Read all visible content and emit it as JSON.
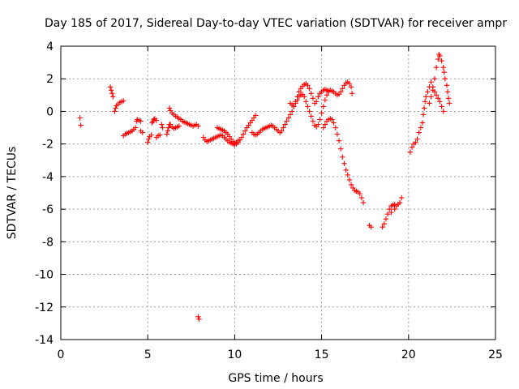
{
  "chart_data": {
    "type": "scatter",
    "title": "Day 185 of 2017, Sidereal Day-to-day VTEC variation (SDTVAR) for receiver ampr",
    "xlabel": "GPS time / hours",
    "ylabel": "SDTVAR / TECUs",
    "xlim": [
      0,
      25
    ],
    "ylim": [
      -14,
      4
    ],
    "xticks": [
      0,
      5,
      10,
      15,
      20,
      25
    ],
    "yticks": [
      -14,
      -12,
      -10,
      -8,
      -6,
      -4,
      -2,
      0,
      2,
      4
    ],
    "xtick_labels": [
      "0",
      "5",
      "10",
      "15",
      "20",
      "25"
    ],
    "ytick_labels": [
      "-14",
      "-12",
      "-10",
      "-8",
      "-6",
      "-4",
      "-2",
      "0",
      "2",
      "4"
    ],
    "grid": true,
    "marker": "plus",
    "color": "#ff0000",
    "series": [
      {
        "points": [
          [
            1.1,
            -0.4
          ],
          [
            1.15,
            -0.85
          ],
          [
            2.85,
            1.5
          ],
          [
            2.9,
            1.3
          ],
          [
            2.95,
            1.1
          ],
          [
            3.0,
            0.9
          ],
          [
            3.1,
            0.0
          ],
          [
            3.15,
            0.2
          ],
          [
            3.2,
            0.35
          ],
          [
            3.3,
            0.45
          ],
          [
            3.4,
            0.55
          ],
          [
            3.5,
            0.6
          ],
          [
            3.6,
            0.65
          ],
          [
            3.6,
            -1.5
          ],
          [
            3.7,
            -1.4
          ],
          [
            3.8,
            -1.35
          ],
          [
            3.9,
            -1.3
          ],
          [
            4.0,
            -1.25
          ],
          [
            4.1,
            -1.2
          ],
          [
            4.2,
            -1.1
          ],
          [
            4.3,
            -1.0
          ],
          [
            4.35,
            -0.6
          ],
          [
            4.4,
            -0.5
          ],
          [
            4.5,
            -0.55
          ],
          [
            4.6,
            -0.6
          ],
          [
            4.6,
            -1.2
          ],
          [
            4.7,
            -1.3
          ],
          [
            5.0,
            -1.9
          ],
          [
            5.05,
            -1.7
          ],
          [
            5.1,
            -1.55
          ],
          [
            5.2,
            -1.45
          ],
          [
            5.25,
            -0.7
          ],
          [
            5.3,
            -0.6
          ],
          [
            5.35,
            -0.5
          ],
          [
            5.4,
            -0.45
          ],
          [
            5.5,
            -0.55
          ],
          [
            5.5,
            -1.6
          ],
          [
            5.6,
            -1.5
          ],
          [
            5.7,
            -1.45
          ],
          [
            5.8,
            -0.8
          ],
          [
            5.85,
            -1.0
          ],
          [
            6.1,
            -1.4
          ],
          [
            6.15,
            -1.2
          ],
          [
            6.2,
            -1.0
          ],
          [
            6.25,
            -0.8
          ],
          [
            6.25,
            0.2
          ],
          [
            6.3,
            0.05
          ],
          [
            6.4,
            -0.1
          ],
          [
            6.5,
            -0.2
          ],
          [
            6.6,
            -0.3
          ],
          [
            6.7,
            -0.35
          ],
          [
            6.8,
            -0.45
          ],
          [
            6.9,
            -0.5
          ],
          [
            7.0,
            -0.6
          ],
          [
            7.1,
            -0.65
          ],
          [
            7.2,
            -0.7
          ],
          [
            7.3,
            -0.75
          ],
          [
            7.4,
            -0.8
          ],
          [
            7.5,
            -0.85
          ],
          [
            7.6,
            -0.9
          ],
          [
            7.7,
            -0.85
          ],
          [
            7.8,
            -0.8
          ],
          [
            7.9,
            -0.9
          ],
          [
            6.3,
            -0.8
          ],
          [
            6.4,
            -0.95
          ],
          [
            6.5,
            -1.05
          ],
          [
            6.6,
            -1.0
          ],
          [
            6.7,
            -0.95
          ],
          [
            6.8,
            -0.9
          ],
          [
            7.9,
            -12.6
          ],
          [
            7.95,
            -12.75
          ],
          [
            8.2,
            -1.6
          ],
          [
            8.3,
            -1.75
          ],
          [
            8.4,
            -1.85
          ],
          [
            8.5,
            -1.8
          ],
          [
            8.6,
            -1.75
          ],
          [
            8.7,
            -1.7
          ],
          [
            8.8,
            -1.65
          ],
          [
            8.9,
            -1.6
          ],
          [
            9.0,
            -1.55
          ],
          [
            9.1,
            -1.5
          ],
          [
            9.2,
            -1.45
          ],
          [
            9.3,
            -1.5
          ],
          [
            9.4,
            -1.6
          ],
          [
            9.5,
            -1.7
          ],
          [
            9.6,
            -1.8
          ],
          [
            9.7,
            -1.9
          ],
          [
            9.8,
            -1.95
          ],
          [
            9.9,
            -2.0
          ],
          [
            10.0,
            -2.05
          ],
          [
            10.1,
            -2.0
          ],
          [
            10.2,
            -1.9
          ],
          [
            10.3,
            -1.75
          ],
          [
            10.4,
            -1.6
          ],
          [
            10.5,
            -1.4
          ],
          [
            10.6,
            -1.2
          ],
          [
            10.7,
            -1.0
          ],
          [
            10.8,
            -0.85
          ],
          [
            10.9,
            -0.7
          ],
          [
            11.0,
            -0.55
          ],
          [
            11.1,
            -0.4
          ],
          [
            11.2,
            -0.25
          ],
          [
            9.0,
            -1.0
          ],
          [
            9.1,
            -1.05
          ],
          [
            9.2,
            -1.1
          ],
          [
            9.3,
            -1.15
          ],
          [
            9.4,
            -1.2
          ],
          [
            9.5,
            -1.3
          ],
          [
            9.6,
            -1.4
          ],
          [
            9.7,
            -1.55
          ],
          [
            9.8,
            -1.7
          ],
          [
            9.9,
            -1.85
          ],
          [
            10.0,
            -1.95
          ],
          [
            10.1,
            -1.9
          ],
          [
            10.2,
            -1.8
          ],
          [
            11.0,
            -1.3
          ],
          [
            11.1,
            -1.4
          ],
          [
            11.2,
            -1.45
          ],
          [
            11.3,
            -1.4
          ],
          [
            11.4,
            -1.3
          ],
          [
            11.5,
            -1.2
          ],
          [
            11.6,
            -1.1
          ],
          [
            11.7,
            -1.05
          ],
          [
            11.8,
            -1.0
          ],
          [
            11.9,
            -0.95
          ],
          [
            12.0,
            -0.9
          ],
          [
            12.1,
            -0.85
          ],
          [
            12.2,
            -0.9
          ],
          [
            12.3,
            -1.0
          ],
          [
            12.4,
            -1.1
          ],
          [
            12.5,
            -1.2
          ],
          [
            12.6,
            -1.3
          ],
          [
            12.7,
            -1.2
          ],
          [
            12.8,
            -1.0
          ],
          [
            12.9,
            -0.8
          ],
          [
            13.0,
            -0.6
          ],
          [
            13.1,
            -0.4
          ],
          [
            13.2,
            -0.2
          ],
          [
            13.3,
            0.0
          ],
          [
            13.4,
            0.3
          ],
          [
            13.5,
            0.6
          ],
          [
            13.6,
            0.9
          ],
          [
            13.7,
            1.2
          ],
          [
            13.8,
            1.4
          ],
          [
            13.9,
            1.55
          ],
          [
            14.0,
            1.65
          ],
          [
            14.1,
            1.7
          ],
          [
            14.2,
            1.6
          ],
          [
            14.3,
            1.4
          ],
          [
            14.4,
            1.1
          ],
          [
            14.5,
            0.8
          ],
          [
            14.6,
            0.5
          ],
          [
            13.2,
            0.5
          ],
          [
            13.3,
            0.4
          ],
          [
            13.4,
            0.3
          ],
          [
            13.5,
            0.5
          ],
          [
            13.6,
            0.7
          ],
          [
            13.7,
            0.9
          ],
          [
            13.8,
            1.0
          ],
          [
            13.9,
            1.05
          ],
          [
            14.0,
            0.9
          ],
          [
            14.1,
            0.6
          ],
          [
            14.2,
            0.3
          ],
          [
            14.3,
            0.0
          ],
          [
            14.4,
            -0.3
          ],
          [
            14.5,
            -0.6
          ],
          [
            14.6,
            -0.85
          ],
          [
            14.7,
            -0.95
          ],
          [
            14.8,
            -0.8
          ],
          [
            14.9,
            -0.5
          ],
          [
            15.0,
            -0.1
          ],
          [
            15.1,
            0.3
          ],
          [
            15.2,
            0.7
          ],
          [
            15.3,
            1.0
          ],
          [
            15.4,
            1.2
          ],
          [
            15.5,
            1.3
          ],
          [
            15.6,
            1.25
          ],
          [
            15.7,
            1.2
          ],
          [
            15.8,
            1.1
          ],
          [
            15.9,
            1.0
          ],
          [
            16.0,
            1.05
          ],
          [
            16.1,
            1.2
          ],
          [
            16.2,
            1.4
          ],
          [
            16.3,
            1.6
          ],
          [
            16.4,
            1.75
          ],
          [
            16.5,
            1.8
          ],
          [
            16.6,
            1.7
          ],
          [
            16.7,
            1.5
          ],
          [
            16.75,
            1.1
          ],
          [
            14.7,
            0.6
          ],
          [
            14.8,
            0.9
          ],
          [
            14.9,
            1.1
          ],
          [
            15.0,
            1.2
          ],
          [
            15.1,
            1.3
          ],
          [
            15.2,
            1.35
          ],
          [
            15.3,
            1.3
          ],
          [
            15.4,
            1.25
          ],
          [
            15.1,
            -1.0
          ],
          [
            15.2,
            -0.8
          ],
          [
            15.3,
            -0.6
          ],
          [
            15.4,
            -0.5
          ],
          [
            15.5,
            -0.45
          ],
          [
            15.6,
            -0.5
          ],
          [
            15.7,
            -0.7
          ],
          [
            15.8,
            -1.0
          ],
          [
            15.9,
            -1.4
          ],
          [
            16.0,
            -1.8
          ],
          [
            16.1,
            -2.3
          ],
          [
            16.2,
            -2.8
          ],
          [
            16.3,
            -3.2
          ],
          [
            16.4,
            -3.6
          ],
          [
            16.5,
            -3.9
          ],
          [
            16.6,
            -4.2
          ],
          [
            16.7,
            -4.5
          ],
          [
            16.8,
            -4.7
          ],
          [
            16.9,
            -4.85
          ],
          [
            17.0,
            -4.9
          ],
          [
            17.1,
            -4.95
          ],
          [
            17.2,
            -5.05
          ],
          [
            17.3,
            -5.3
          ],
          [
            17.4,
            -5.6
          ],
          [
            17.75,
            -7.0
          ],
          [
            17.85,
            -7.1
          ],
          [
            18.5,
            -7.1
          ],
          [
            18.6,
            -6.9
          ],
          [
            18.7,
            -6.6
          ],
          [
            18.8,
            -6.3
          ],
          [
            18.9,
            -6.0
          ],
          [
            19.0,
            -5.8
          ],
          [
            19.1,
            -5.75
          ],
          [
            19.2,
            -5.7
          ],
          [
            19.3,
            -5.8
          ],
          [
            19.4,
            -5.7
          ],
          [
            19.5,
            -5.6
          ],
          [
            19.6,
            -5.3
          ],
          [
            19.0,
            -6.2
          ],
          [
            19.2,
            -6.0
          ],
          [
            20.1,
            -2.5
          ],
          [
            20.2,
            -2.2
          ],
          [
            20.3,
            -2.0
          ],
          [
            20.4,
            -1.9
          ],
          [
            20.5,
            -1.7
          ],
          [
            20.6,
            -1.3
          ],
          [
            20.7,
            -1.0
          ],
          [
            20.8,
            -0.7
          ],
          [
            20.85,
            -0.2
          ],
          [
            20.9,
            0.2
          ],
          [
            20.95,
            0.6
          ],
          [
            21.0,
            0.9
          ],
          [
            21.1,
            1.2
          ],
          [
            21.2,
            1.5
          ],
          [
            21.3,
            1.8
          ],
          [
            21.4,
            1.5
          ],
          [
            21.5,
            1.2
          ],
          [
            21.6,
            1.0
          ],
          [
            21.7,
            0.8
          ],
          [
            21.8,
            0.6
          ],
          [
            21.9,
            0.3
          ],
          [
            22.0,
            0.0
          ],
          [
            21.2,
            0.5
          ],
          [
            21.3,
            0.9
          ],
          [
            21.4,
            1.3
          ],
          [
            21.5,
            2.0
          ],
          [
            21.6,
            2.7
          ],
          [
            21.7,
            3.2
          ],
          [
            21.75,
            3.5
          ],
          [
            21.8,
            3.4
          ],
          [
            21.9,
            3.1
          ],
          [
            22.0,
            2.7
          ],
          [
            22.05,
            2.4
          ],
          [
            22.1,
            2.0
          ],
          [
            22.2,
            1.6
          ],
          [
            22.25,
            1.2
          ],
          [
            22.3,
            0.8
          ],
          [
            22.35,
            0.5
          ]
        ]
      }
    ]
  }
}
